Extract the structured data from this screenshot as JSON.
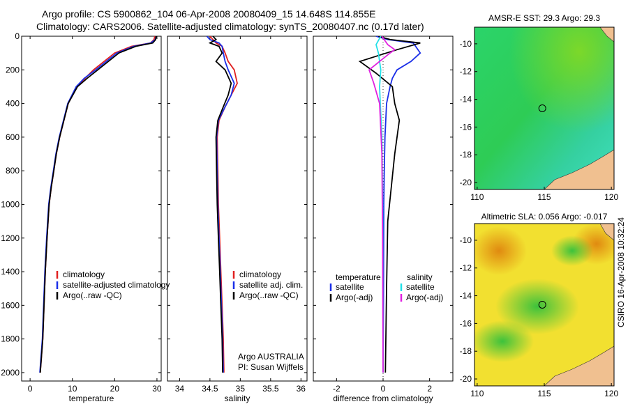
{
  "titles": {
    "line1": "Argo profile: CS 5900862_104 06-Apr-2008 20080409_15 14.648S 114.855E",
    "line2": "Climatology: CARS2006. Satellite-adjusted climatology: synTS_20080407.nc (0.17d later)"
  },
  "credit": "CSIRO 16-Apr-2008 10:32:24",
  "colors": {
    "climatology": "#e02020",
    "satellite": "#1a2ee8",
    "argo": "#000000",
    "satellite_sal": "#22e0e8",
    "argo_sal_adj": "#e020e0"
  },
  "chart_data": [
    {
      "type": "line",
      "title": "",
      "xlabel": "temperature",
      "ylabel": "",
      "xlim": [
        -2,
        31
      ],
      "ylim": [
        2050,
        0
      ],
      "xticks": [
        0,
        10,
        20,
        30
      ],
      "xtick_labels": [
        "0",
        "10",
        "20",
        "30"
      ],
      "yticks": [
        0,
        200,
        400,
        600,
        800,
        1000,
        1200,
        1400,
        1600,
        1800,
        2000
      ],
      "ytick_labels": [
        "0",
        "200",
        "400",
        "600",
        "800",
        "1000",
        "1200",
        "1400",
        "1600",
        "1800",
        "2000"
      ],
      "legend": [
        "climatology",
        "satellite-adjusted climatology",
        "Argo(..raw -QC)"
      ],
      "series": [
        {
          "name": "climatology",
          "color": "#e02020",
          "x": [
            29.5,
            29.3,
            28.5,
            24,
            20,
            15,
            13,
            11,
            9,
            8,
            7,
            6.2,
            5.6,
            5,
            4.5,
            4,
            3.6,
            3.3,
            3,
            2.7,
            2.4
          ],
          "y": [
            0,
            20,
            40,
            60,
            100,
            200,
            250,
            300,
            400,
            500,
            600,
            700,
            800,
            900,
            1000,
            1200,
            1400,
            1600,
            1800,
            1900,
            2000
          ]
        },
        {
          "name": "satellite",
          "color": "#1a2ee8",
          "x": [
            29.8,
            29.6,
            28.5,
            24.5,
            20.5,
            15.5,
            12.8,
            10.9,
            8.9,
            7.9,
            6.9,
            6.1,
            5.5,
            4.9,
            4.4,
            3.9,
            3.5,
            3.2,
            2.9,
            2.6,
            2.3
          ],
          "y": [
            0,
            20,
            40,
            60,
            100,
            200,
            250,
            300,
            400,
            500,
            600,
            700,
            800,
            900,
            1000,
            1200,
            1400,
            1600,
            1800,
            1900,
            2000
          ]
        },
        {
          "name": "argo",
          "color": "#000000",
          "x": [
            29.8,
            29.7,
            29,
            25,
            21,
            16,
            13.5,
            11.2,
            9,
            8,
            7,
            6.2,
            5.6,
            5,
            4.5,
            4,
            3.6,
            3.3,
            3,
            2.7,
            2.4
          ],
          "y": [
            0,
            20,
            40,
            60,
            100,
            200,
            250,
            300,
            400,
            500,
            600,
            700,
            800,
            900,
            1000,
            1200,
            1400,
            1600,
            1800,
            1900,
            2000
          ]
        }
      ]
    },
    {
      "type": "line",
      "title": "",
      "xlabel": "salinity",
      "ylabel": "",
      "xlim": [
        33.8,
        36.1
      ],
      "ylim": [
        2050,
        0
      ],
      "xticks": [
        34,
        34.5,
        35,
        35.5,
        36
      ],
      "xtick_labels": [
        "34",
        "34.5",
        "35",
        "35.5",
        "36"
      ],
      "legend": [
        "climatology",
        "satellite adj. clim.",
        "Argo(..raw -QC)"
      ],
      "annotation": [
        "Argo AUSTRALIA",
        "PI: Susan Wijffels"
      ],
      "series": [
        {
          "name": "climatology",
          "color": "#e02020",
          "x": [
            34.5,
            34.55,
            34.6,
            34.7,
            34.75,
            34.8,
            34.9,
            34.95,
            34.85,
            34.75,
            34.65,
            34.62,
            34.63,
            34.64,
            34.66,
            34.68,
            34.7,
            34.72,
            34.73
          ],
          "y": [
            0,
            20,
            40,
            60,
            100,
            150,
            200,
            280,
            350,
            420,
            500,
            600,
            800,
            1000,
            1200,
            1400,
            1600,
            1800,
            2000
          ]
        },
        {
          "name": "satellite",
          "color": "#1a2ee8",
          "x": [
            34.45,
            34.5,
            34.65,
            34.7,
            34.72,
            34.75,
            34.8,
            34.9,
            34.85,
            34.75,
            34.64,
            34.61,
            34.62,
            34.63,
            34.65,
            34.67,
            34.69,
            34.71,
            34.72
          ],
          "y": [
            0,
            20,
            40,
            60,
            100,
            150,
            200,
            280,
            350,
            420,
            500,
            600,
            800,
            1000,
            1200,
            1400,
            1600,
            1800,
            2000
          ]
        },
        {
          "name": "argo",
          "color": "#000000",
          "x": [
            34.55,
            34.6,
            34.5,
            34.65,
            34.7,
            34.6,
            34.75,
            34.85,
            34.8,
            34.72,
            34.63,
            34.6,
            34.61,
            34.62,
            34.64,
            34.66,
            34.68,
            34.7,
            34.71
          ],
          "y": [
            0,
            20,
            40,
            60,
            100,
            150,
            200,
            280,
            350,
            420,
            500,
            600,
            800,
            1000,
            1200,
            1400,
            1600,
            1800,
            2000
          ]
        }
      ]
    },
    {
      "type": "line",
      "title": "",
      "xlabel": "difference from climatology",
      "ylabel": "",
      "xlim": [
        -3,
        3
      ],
      "ylim": [
        2050,
        0
      ],
      "xticks": [
        -2,
        0,
        2
      ],
      "xtick_labels": [
        "-2",
        "0",
        "2"
      ],
      "legend_left_heading": "temperature",
      "legend_left": [
        "satellite",
        "Argo(-adj)"
      ],
      "legend_right_heading": "salinity",
      "legend_right": [
        "satellite",
        "Argo(-adj)"
      ],
      "series": [
        {
          "name": "temperature satellite",
          "color": "#1a2ee8",
          "x": [
            -0.3,
            0.2,
            1.3,
            1.6,
            1.2,
            0.6,
            0.4,
            0.3,
            0.15,
            0.08,
            0.05,
            0.03,
            0.02,
            0.01,
            0.0
          ],
          "y": [
            0,
            20,
            40,
            100,
            150,
            200,
            250,
            300,
            400,
            600,
            800,
            1000,
            1400,
            1800,
            2000
          ]
        },
        {
          "name": "temperature Argo(-adj)",
          "color": "#000000",
          "x": [
            -0.2,
            0.3,
            1.6,
            0.6,
            -1.0,
            -0.3,
            0.4,
            0.5,
            0.7,
            0.6,
            0.5,
            0.35,
            0.2,
            0.15,
            0.1
          ],
          "y": [
            0,
            20,
            40,
            80,
            150,
            220,
            300,
            400,
            500,
            600,
            700,
            900,
            1100,
            1500,
            2000
          ]
        },
        {
          "name": "salinity satellite",
          "color": "#22e0e8",
          "x": [
            -0.1,
            -0.3,
            -0.2,
            -0.1,
            -0.15,
            -0.12,
            -0.05,
            -0.02,
            -0.01,
            0.0
          ],
          "y": [
            0,
            50,
            100,
            200,
            300,
            400,
            600,
            1000,
            1500,
            2000
          ]
        },
        {
          "name": "salinity Argo(-adj)",
          "color": "#e020e0",
          "x": [
            -0.05,
            0.2,
            0.5,
            0.3,
            -0.6,
            -0.4,
            -0.15,
            -0.05,
            -0.02,
            0.0
          ],
          "y": [
            0,
            50,
            80,
            100,
            200,
            280,
            400,
            700,
            1200,
            2000
          ]
        }
      ]
    },
    {
      "type": "heatmap",
      "title": "AMSR-E SST: 29.3 Argo: 29.3",
      "xlim": [
        109.8,
        120.2
      ],
      "ylim": [
        -20.5,
        -8.8
      ],
      "xticks": [
        110,
        115,
        120
      ],
      "xtick_labels": [
        "110",
        "115",
        "120"
      ],
      "yticks": [
        -10,
        -12,
        -14,
        -16,
        -18,
        -20
      ],
      "ytick_labels": [
        "-10",
        "-12",
        "-14",
        "-16",
        "-18",
        "-20"
      ],
      "profile_location": [
        114.855,
        -14.648
      ]
    },
    {
      "type": "heatmap",
      "title": "Altimetric SLA: 0.056 Argo: -0.017",
      "xlim": [
        109.8,
        120.2
      ],
      "ylim": [
        -20.5,
        -8.8
      ],
      "xticks": [
        110,
        115,
        120
      ],
      "xtick_labels": [
        "110",
        "115",
        "120"
      ],
      "yticks": [
        -10,
        -12,
        -14,
        -16,
        -18,
        -20
      ],
      "ytick_labels": [
        "-10",
        "-12",
        "-14",
        "-16",
        "-18",
        "-20"
      ],
      "profile_location": [
        114.855,
        -14.648
      ]
    }
  ]
}
